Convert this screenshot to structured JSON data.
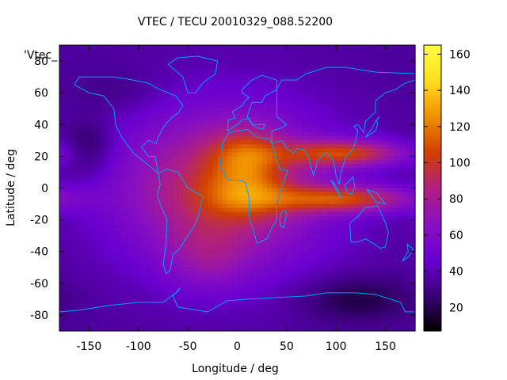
{
  "chart_data": {
    "type": "heatmap",
    "title": "VTEC / TECU 20010329_088.52200",
    "xlabel": "Longitude / deg",
    "ylabel": "Latitude / deg",
    "key_label": "'Vtec_",
    "xlim": [
      -180,
      180
    ],
    "ylim": [
      -90,
      90
    ],
    "x_ticks": [
      -150,
      -100,
      -50,
      0,
      50,
      100,
      150
    ],
    "y_ticks": [
      -80,
      -60,
      -40,
      -20,
      0,
      20,
      40,
      60,
      80
    ],
    "colorbar": {
      "min": 7,
      "max": 165,
      "ticks": [
        20,
        40,
        60,
        80,
        100,
        120,
        140,
        160
      ],
      "palette": [
        "#000000",
        "#3a0078",
        "#6a00d0",
        "#8a10c0",
        "#b02080",
        "#d04000",
        "#f09000",
        "#ffdd20",
        "#ffff40"
      ]
    },
    "grid": false,
    "field_features": [
      {
        "type": "background",
        "value": 35
      },
      {
        "type": "blob",
        "lon": -15,
        "lat": 0,
        "sigma_lon": 75,
        "sigma_lat": 35,
        "value": 62
      },
      {
        "type": "blob",
        "lon": 10,
        "lat": 20,
        "sigma_lon": 25,
        "sigma_lat": 12,
        "value": 35
      },
      {
        "type": "blob",
        "lon": 10,
        "lat": -5,
        "sigma_lon": 30,
        "sigma_lat": 10,
        "value": 28
      },
      {
        "type": "blob",
        "lon": -30,
        "lat": -45,
        "sigma_lon": 30,
        "sigma_lat": 15,
        "value": 18
      },
      {
        "type": "blob",
        "lon": 110,
        "lat": 22,
        "sigma_lon": 45,
        "sigma_lat": 6,
        "value": 60
      },
      {
        "type": "blob",
        "lon": 110,
        "lat": -7,
        "sigma_lon": 50,
        "sigma_lat": 6,
        "value": 60
      },
      {
        "type": "blob",
        "lon": -150,
        "lat": 25,
        "sigma_lon": 18,
        "sigma_lat": 12,
        "value": -20
      },
      {
        "type": "blob",
        "lon": 120,
        "lat": -70,
        "sigma_lon": 40,
        "sigma_lat": 10,
        "value": -18
      },
      {
        "type": "blob",
        "lon": -120,
        "lat": 60,
        "sigma_lon": 35,
        "sigma_lat": 10,
        "value": -8
      }
    ],
    "coastline_color": "#00a0ff"
  }
}
